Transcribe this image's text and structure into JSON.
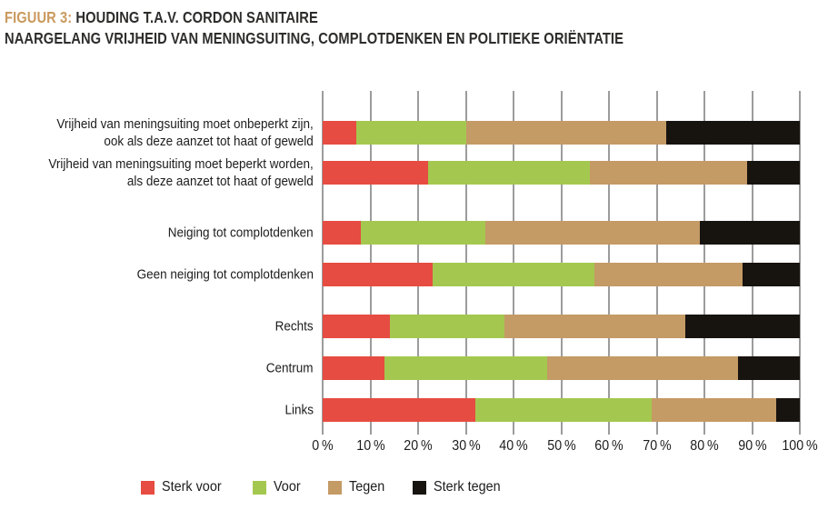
{
  "header": {
    "figure_label": "FIGUUR 3:",
    "title_line1": "HOUDING T.A.V. CORDON SANITAIRE",
    "title_line2": "NAARGELANG VRIJHEID VAN MENINGSUITING, COMPLOTDENKEN EN POLITIEKE ORIËNTATIE",
    "accent_color": "#ca9a5e"
  },
  "chart_data": {
    "type": "bar",
    "orientation": "horizontal",
    "stacked": true,
    "unit": "percent",
    "xlim": [
      0,
      100
    ],
    "grid": true,
    "gridline_color": "#9c9c9c",
    "x_ticks": [
      "0 %",
      "10 %",
      "20 %",
      "30 %",
      "40 %",
      "50 %",
      "60 %",
      "70 %",
      "80 %",
      "90 %",
      "100 %"
    ],
    "categories": [
      [
        "Vrijheid van meningsuiting moet onbeperkt zijn,",
        "ook als deze aanzet tot haat of geweld"
      ],
      [
        "Vrijheid van meningsuiting moet beperkt worden,",
        "als deze aanzet tot haat of geweld"
      ],
      [
        "Neiging tot complotdenken"
      ],
      [
        "Geen neiging tot complotdenken"
      ],
      [
        "Rechts"
      ],
      [
        "Centrum"
      ],
      [
        "Links"
      ]
    ],
    "series": [
      {
        "name": "Sterk voor",
        "color": "#e64c41",
        "values": [
          7,
          22,
          8,
          23,
          14,
          13,
          32
        ]
      },
      {
        "name": "Voor",
        "color": "#a4c84f",
        "values": [
          23,
          34,
          26,
          34,
          24,
          34,
          37
        ]
      },
      {
        "name": "Tegen",
        "color": "#c49a65",
        "values": [
          42,
          33,
          45,
          31,
          38,
          40,
          26
        ]
      },
      {
        "name": "Sterk tegen",
        "color": "#17130f",
        "values": [
          28,
          11,
          21,
          12,
          24,
          13,
          5
        ]
      }
    ],
    "legend": {
      "position": "bottom-left",
      "entries": [
        "Sterk voor",
        "Voor",
        "Tegen",
        "Sterk tegen"
      ]
    }
  }
}
